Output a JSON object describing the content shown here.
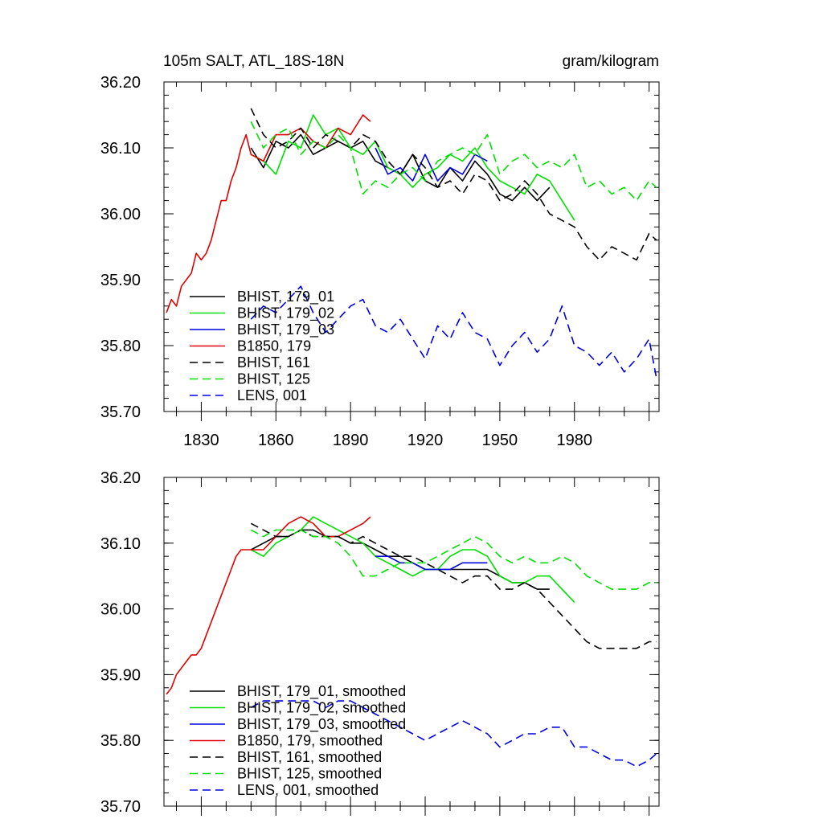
{
  "figure": {
    "title_left": "105m SALT, ATL_18S-18N",
    "title_right": "gram/kilogram"
  },
  "styles": {
    "BHIST, 179_01": {
      "color": "#000000",
      "dash": ""
    },
    "BHIST, 179_02": {
      "color": "#00e000",
      "dash": ""
    },
    "BHIST, 179_03": {
      "color": "#0000e0",
      "dash": ""
    },
    "B1850, 179": {
      "color": "#e00000",
      "dash": ""
    },
    "BHIST, 161": {
      "color": "#000000",
      "dash": "10 6"
    },
    "BHIST, 125": {
      "color": "#00e000",
      "dash": "10 6"
    },
    "LENS, 001": {
      "color": "#0000e0",
      "dash": "10 6"
    }
  },
  "chart_data": [
    {
      "type": "line",
      "xlabel": "",
      "ylabel": "",
      "xlim": [
        1815,
        2014
      ],
      "ylim": [
        35.7,
        36.2
      ],
      "xticks": [
        "1830",
        "1860",
        "1890",
        "1920",
        "1950",
        "1980"
      ],
      "yticks": [
        "35.70",
        "35.80",
        "35.90",
        "36.00",
        "36.10",
        "36.20"
      ],
      "grid": false,
      "legend_position": "lower-left",
      "series": [
        {
          "name": "BHIST, 179_01",
          "key": "BHIST, 179_01",
          "x": [
            1850,
            1855,
            1860,
            1865,
            1870,
            1875,
            1880,
            1885,
            1890,
            1895,
            1900,
            1905,
            1910,
            1915,
            1920,
            1925,
            1930,
            1935,
            1940,
            1945,
            1950,
            1955,
            1960,
            1965,
            1970
          ],
          "y": [
            36.1,
            36.07,
            36.11,
            36.1,
            36.12,
            36.09,
            36.1,
            36.11,
            36.1,
            36.11,
            36.08,
            36.07,
            36.06,
            36.09,
            36.05,
            36.04,
            36.07,
            36.05,
            36.08,
            36.06,
            36.03,
            36.02,
            36.04,
            36.02,
            36.04
          ]
        },
        {
          "name": "BHIST, 179_02",
          "key": "BHIST, 179_02",
          "x": [
            1850,
            1855,
            1860,
            1865,
            1870,
            1875,
            1880,
            1885,
            1890,
            1895,
            1900,
            1905,
            1910,
            1915,
            1920,
            1925,
            1930,
            1935,
            1940,
            1945,
            1950,
            1955,
            1960,
            1965,
            1970,
            1975,
            1980
          ],
          "y": [
            36.09,
            36.08,
            36.06,
            36.11,
            36.1,
            36.15,
            36.12,
            36.13,
            36.1,
            36.09,
            36.11,
            36.07,
            36.06,
            36.04,
            36.06,
            36.07,
            36.09,
            36.08,
            36.1,
            36.07,
            36.05,
            36.04,
            36.03,
            36.06,
            36.05,
            36.02,
            35.99
          ]
        },
        {
          "name": "BHIST, 179_03",
          "key": "BHIST, 179_03",
          "x": [
            1900,
            1905,
            1910,
            1915,
            1920,
            1925,
            1930,
            1935,
            1940,
            1945
          ],
          "y": [
            36.1,
            36.06,
            36.07,
            36.05,
            36.09,
            36.05,
            36.07,
            36.06,
            36.09,
            36.08
          ]
        },
        {
          "name": "B1850, 179",
          "key": "B1850, 179",
          "x": [
            1816,
            1818,
            1820,
            1822,
            1824,
            1826,
            1828,
            1830,
            1832,
            1834,
            1836,
            1838,
            1840,
            1842,
            1844,
            1846,
            1848,
            1850,
            1855,
            1860,
            1865,
            1870,
            1875,
            1880,
            1885,
            1890,
            1895,
            1898
          ],
          "y": [
            35.85,
            35.87,
            35.86,
            35.89,
            35.9,
            35.91,
            35.94,
            35.93,
            35.94,
            35.96,
            35.99,
            36.02,
            36.02,
            36.05,
            36.07,
            36.1,
            36.12,
            36.09,
            36.08,
            36.12,
            36.12,
            36.13,
            36.11,
            36.1,
            36.13,
            36.12,
            36.15,
            36.14
          ]
        },
        {
          "name": "BHIST, 161",
          "key": "BHIST, 161",
          "x": [
            1850,
            1855,
            1860,
            1865,
            1870,
            1875,
            1880,
            1885,
            1890,
            1895,
            1900,
            1905,
            1910,
            1915,
            1920,
            1925,
            1930,
            1935,
            1940,
            1945,
            1950,
            1955,
            1960,
            1965,
            1970,
            1975,
            1980,
            1985,
            1990,
            1995,
            2000,
            2005,
            2010,
            2013
          ],
          "y": [
            36.16,
            36.12,
            36.1,
            36.11,
            36.13,
            36.1,
            36.12,
            36.11,
            36.1,
            36.12,
            36.11,
            36.08,
            36.06,
            36.09,
            36.07,
            36.04,
            36.05,
            36.03,
            36.06,
            36.05,
            36.02,
            36.03,
            36.05,
            36.03,
            36.0,
            35.99,
            35.98,
            35.95,
            35.93,
            35.95,
            35.94,
            35.93,
            35.97,
            35.96
          ]
        },
        {
          "name": "BHIST, 125",
          "key": "BHIST, 125",
          "x": [
            1850,
            1855,
            1860,
            1865,
            1870,
            1875,
            1880,
            1885,
            1890,
            1895,
            1900,
            1905,
            1910,
            1915,
            1920,
            1925,
            1930,
            1935,
            1940,
            1945,
            1950,
            1955,
            1960,
            1965,
            1970,
            1975,
            1980,
            1985,
            1990,
            1995,
            2000,
            2005,
            2010,
            2013
          ],
          "y": [
            36.14,
            36.1,
            36.12,
            36.13,
            36.09,
            36.11,
            36.1,
            36.12,
            36.1,
            36.03,
            36.05,
            36.04,
            36.06,
            36.07,
            36.05,
            36.08,
            36.09,
            36.1,
            36.09,
            36.12,
            36.06,
            36.08,
            36.09,
            36.07,
            36.08,
            36.07,
            36.09,
            36.04,
            36.05,
            36.03,
            36.04,
            36.02,
            36.05,
            36.04
          ]
        },
        {
          "name": "LENS, 001",
          "key": "LENS, 001",
          "x": [
            1850,
            1855,
            1860,
            1865,
            1870,
            1875,
            1880,
            1885,
            1890,
            1895,
            1900,
            1905,
            1910,
            1915,
            1920,
            1925,
            1930,
            1935,
            1940,
            1945,
            1950,
            1955,
            1960,
            1965,
            1970,
            1975,
            1980,
            1985,
            1990,
            1995,
            2000,
            2005,
            2010,
            2013
          ],
          "y": [
            35.84,
            35.86,
            35.85,
            35.87,
            35.89,
            35.85,
            35.82,
            35.84,
            35.86,
            35.87,
            35.83,
            35.82,
            35.84,
            35.81,
            35.78,
            35.83,
            35.81,
            35.85,
            35.82,
            35.81,
            35.77,
            35.8,
            35.82,
            35.79,
            35.81,
            35.86,
            35.8,
            35.79,
            35.77,
            35.79,
            35.76,
            35.78,
            35.81,
            35.75
          ]
        }
      ]
    },
    {
      "type": "line",
      "xlabel": "",
      "ylabel": "",
      "xlim": [
        1815,
        2014
      ],
      "ylim": [
        35.7,
        36.2
      ],
      "yticks": [
        "35.70",
        "35.80",
        "35.90",
        "36.00",
        "36.10",
        "36.20"
      ],
      "grid": false,
      "legend_position": "lower-left",
      "series": [
        {
          "name": "BHIST, 179_01, smoothed",
          "key": "BHIST, 179_01",
          "x": [
            1850,
            1855,
            1860,
            1865,
            1870,
            1875,
            1880,
            1885,
            1890,
            1895,
            1900,
            1905,
            1910,
            1915,
            1920,
            1925,
            1930,
            1935,
            1940,
            1945,
            1950,
            1955,
            1960,
            1965,
            1970
          ],
          "y": [
            36.09,
            36.1,
            36.11,
            36.11,
            36.12,
            36.12,
            36.11,
            36.11,
            36.1,
            36.1,
            36.09,
            36.08,
            36.08,
            36.07,
            36.06,
            36.06,
            36.06,
            36.06,
            36.06,
            36.06,
            36.05,
            36.04,
            36.04,
            36.03,
            36.03
          ]
        },
        {
          "name": "BHIST, 179_02, smoothed",
          "key": "BHIST, 179_02",
          "x": [
            1850,
            1855,
            1860,
            1865,
            1870,
            1875,
            1880,
            1885,
            1890,
            1895,
            1900,
            1905,
            1910,
            1915,
            1920,
            1925,
            1930,
            1935,
            1940,
            1945,
            1950,
            1955,
            1960,
            1965,
            1970,
            1975,
            1980
          ],
          "y": [
            36.09,
            36.08,
            36.1,
            36.11,
            36.12,
            36.14,
            36.13,
            36.12,
            36.11,
            36.1,
            36.08,
            36.07,
            36.06,
            36.05,
            36.06,
            36.06,
            36.08,
            36.09,
            36.09,
            36.08,
            36.05,
            36.04,
            36.04,
            36.05,
            36.05,
            36.03,
            36.01
          ]
        },
        {
          "name": "BHIST, 179_03, smoothed",
          "key": "BHIST, 179_03",
          "x": [
            1900,
            1905,
            1910,
            1915,
            1920,
            1925,
            1930,
            1935,
            1940,
            1945
          ],
          "y": [
            36.08,
            36.08,
            36.07,
            36.07,
            36.06,
            36.06,
            36.06,
            36.07,
            36.07,
            36.07
          ]
        },
        {
          "name": "B1850, 179, smoothed",
          "key": "B1850, 179",
          "x": [
            1816,
            1818,
            1820,
            1822,
            1824,
            1826,
            1828,
            1830,
            1832,
            1834,
            1836,
            1838,
            1840,
            1842,
            1844,
            1846,
            1848,
            1850,
            1855,
            1860,
            1865,
            1870,
            1875,
            1880,
            1885,
            1890,
            1895,
            1898
          ],
          "y": [
            35.87,
            35.88,
            35.9,
            35.91,
            35.92,
            35.93,
            35.93,
            35.94,
            35.96,
            35.98,
            36.0,
            36.02,
            36.04,
            36.06,
            36.08,
            36.09,
            36.09,
            36.09,
            36.09,
            36.11,
            36.13,
            36.14,
            36.13,
            36.11,
            36.11,
            36.12,
            36.13,
            36.14
          ]
        },
        {
          "name": "BHIST, 161, smoothed",
          "key": "BHIST, 161",
          "x": [
            1850,
            1855,
            1860,
            1865,
            1870,
            1875,
            1880,
            1885,
            1890,
            1895,
            1900,
            1905,
            1910,
            1915,
            1920,
            1925,
            1930,
            1935,
            1940,
            1945,
            1950,
            1955,
            1960,
            1965,
            1970,
            1975,
            1980,
            1985,
            1990,
            1995,
            2000,
            2005,
            2010,
            2013
          ],
          "y": [
            36.13,
            36.12,
            36.11,
            36.11,
            36.12,
            36.11,
            36.11,
            36.11,
            36.1,
            36.11,
            36.1,
            36.09,
            36.08,
            36.08,
            36.07,
            36.06,
            36.05,
            36.04,
            36.05,
            36.05,
            36.03,
            36.03,
            36.04,
            36.03,
            36.01,
            35.99,
            35.97,
            35.95,
            35.94,
            35.94,
            35.94,
            35.94,
            35.95,
            35.95
          ]
        },
        {
          "name": "BHIST, 125, smoothed",
          "key": "BHIST, 125",
          "x": [
            1850,
            1855,
            1860,
            1865,
            1870,
            1875,
            1880,
            1885,
            1890,
            1895,
            1900,
            1905,
            1910,
            1915,
            1920,
            1925,
            1930,
            1935,
            1940,
            1945,
            1950,
            1955,
            1960,
            1965,
            1970,
            1975,
            1980,
            1985,
            1990,
            1995,
            2000,
            2005,
            2010,
            2013
          ],
          "y": [
            36.12,
            36.11,
            36.12,
            36.12,
            36.12,
            36.11,
            36.11,
            36.1,
            36.08,
            36.05,
            36.05,
            36.06,
            36.07,
            36.07,
            36.07,
            36.08,
            36.09,
            36.1,
            36.11,
            36.1,
            36.08,
            36.07,
            36.08,
            36.07,
            36.07,
            36.08,
            36.07,
            36.05,
            36.04,
            36.03,
            36.03,
            36.03,
            36.04,
            36.04
          ]
        },
        {
          "name": "LENS, 001, smoothed",
          "key": "LENS, 001",
          "x": [
            1850,
            1855,
            1860,
            1865,
            1870,
            1875,
            1880,
            1885,
            1890,
            1895,
            1900,
            1905,
            1910,
            1915,
            1920,
            1925,
            1930,
            1935,
            1940,
            1945,
            1950,
            1955,
            1960,
            1965,
            1970,
            1975,
            1980,
            1985,
            1990,
            1995,
            2000,
            2005,
            2010,
            2013
          ],
          "y": [
            35.85,
            35.86,
            35.86,
            35.86,
            35.86,
            35.86,
            35.85,
            35.86,
            35.86,
            35.85,
            35.84,
            35.83,
            35.82,
            35.81,
            35.8,
            35.81,
            35.82,
            35.83,
            35.82,
            35.81,
            35.79,
            35.8,
            35.81,
            35.81,
            35.82,
            35.82,
            35.79,
            35.79,
            35.78,
            35.77,
            35.77,
            35.76,
            35.77,
            35.78
          ]
        }
      ]
    }
  ]
}
